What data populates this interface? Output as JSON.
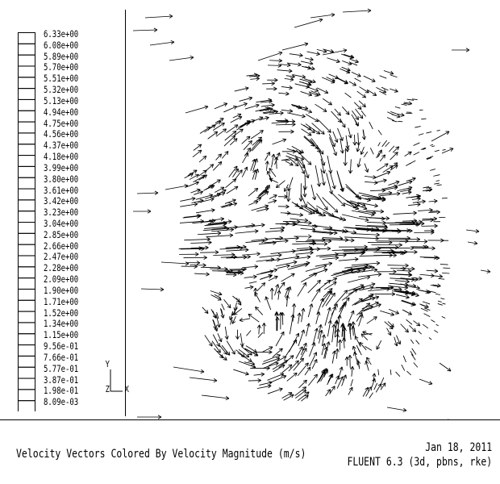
{
  "legend": {
    "labels": [
      "6.33e+00",
      "6.08e+00",
      "5.89e+00",
      "5.70e+00",
      "5.51e+00",
      "5.32e+00",
      "5.13e+00",
      "4.94e+00",
      "4.75e+00",
      "4.56e+00",
      "4.37e+00",
      "4.18e+00",
      "3.99e+00",
      "3.80e+00",
      "3.61e+00",
      "3.42e+00",
      "3.23e+00",
      "3.04e+00",
      "2.85e+00",
      "2.66e+00",
      "2.47e+00",
      "2.28e+00",
      "2.09e+00",
      "1.90e+00",
      "1.71e+00",
      "1.52e+00",
      "1.34e+00",
      "1.15e+00",
      "9.56e-01",
      "7.66e-01",
      "5.77e-01",
      "3.87e-01",
      "1.98e-01",
      "8.09e-03"
    ]
  },
  "axes": {
    "y": "Y",
    "z": "Z",
    "x": "X"
  },
  "footer": {
    "caption": "Velocity Vectors Colored By Velocity Magnitude (m/s)",
    "date": "Jan 18, 2011",
    "version": "FLUENT 6.3 (3d, pbns, rke)"
  },
  "colors": {
    "ink": "#000000",
    "background": "#ffffff"
  }
}
